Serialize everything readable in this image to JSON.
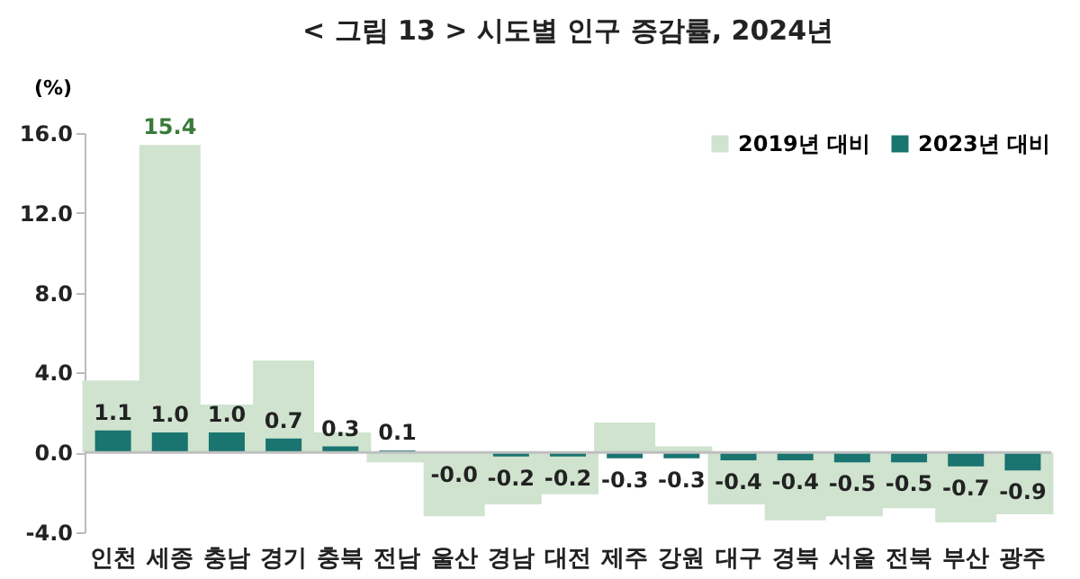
{
  "chart_data": {
    "type": "bar",
    "title": "< 그림 13 >  시도별 인구 증감률, 2024년",
    "ylabel": "(%)",
    "categories": [
      "인천",
      "세종",
      "충남",
      "경기",
      "충북",
      "전남",
      "울산",
      "경남",
      "대전",
      "제주",
      "강원",
      "대구",
      "경북",
      "서울",
      "전북",
      "부산",
      "광주"
    ],
    "series": [
      {
        "name": "2019년 대비",
        "color": "#cfe3cf",
        "values": [
          3.6,
          15.4,
          2.4,
          4.6,
          1.0,
          -0.5,
          -3.2,
          -2.6,
          -2.1,
          1.5,
          0.3,
          -2.6,
          -3.4,
          -3.2,
          -2.8,
          -3.5,
          -3.1
        ],
        "value_labels": [
          null,
          "15.4",
          null,
          null,
          null,
          null,
          null,
          null,
          null,
          null,
          null,
          null,
          null,
          null,
          null,
          null,
          null
        ]
      },
      {
        "name": "2023년 대비",
        "color": "#1a7470",
        "values": [
          1.1,
          1.0,
          1.0,
          0.7,
          0.3,
          0.1,
          -0.04,
          -0.2,
          -0.2,
          -0.3,
          -0.3,
          -0.4,
          -0.4,
          -0.5,
          -0.5,
          -0.7,
          -0.9
        ],
        "value_labels": [
          "1.1",
          "1.0",
          "1.0",
          "0.7",
          "0.3",
          "0.1",
          "-0.0",
          "-0.2",
          "-0.2",
          "-0.3",
          "-0.3",
          "-0.4",
          "-0.4",
          "-0.5",
          "-0.5",
          "-0.7",
          "-0.9"
        ]
      }
    ],
    "ylim": [
      -4,
      16
    ],
    "yticks": [
      {
        "value": -4,
        "label": "-4.0"
      },
      {
        "value": 0,
        "label": "0.0"
      },
      {
        "value": 4,
        "label": "4.0"
      },
      {
        "value": 8,
        "label": "8.0"
      },
      {
        "value": 12,
        "label": "12.0"
      },
      {
        "value": 16,
        "label": "16.0"
      }
    ],
    "ref_lines": [
      {
        "axis": "y",
        "value": 0,
        "color": "#bfbfbf"
      }
    ],
    "legend": "top right"
  }
}
